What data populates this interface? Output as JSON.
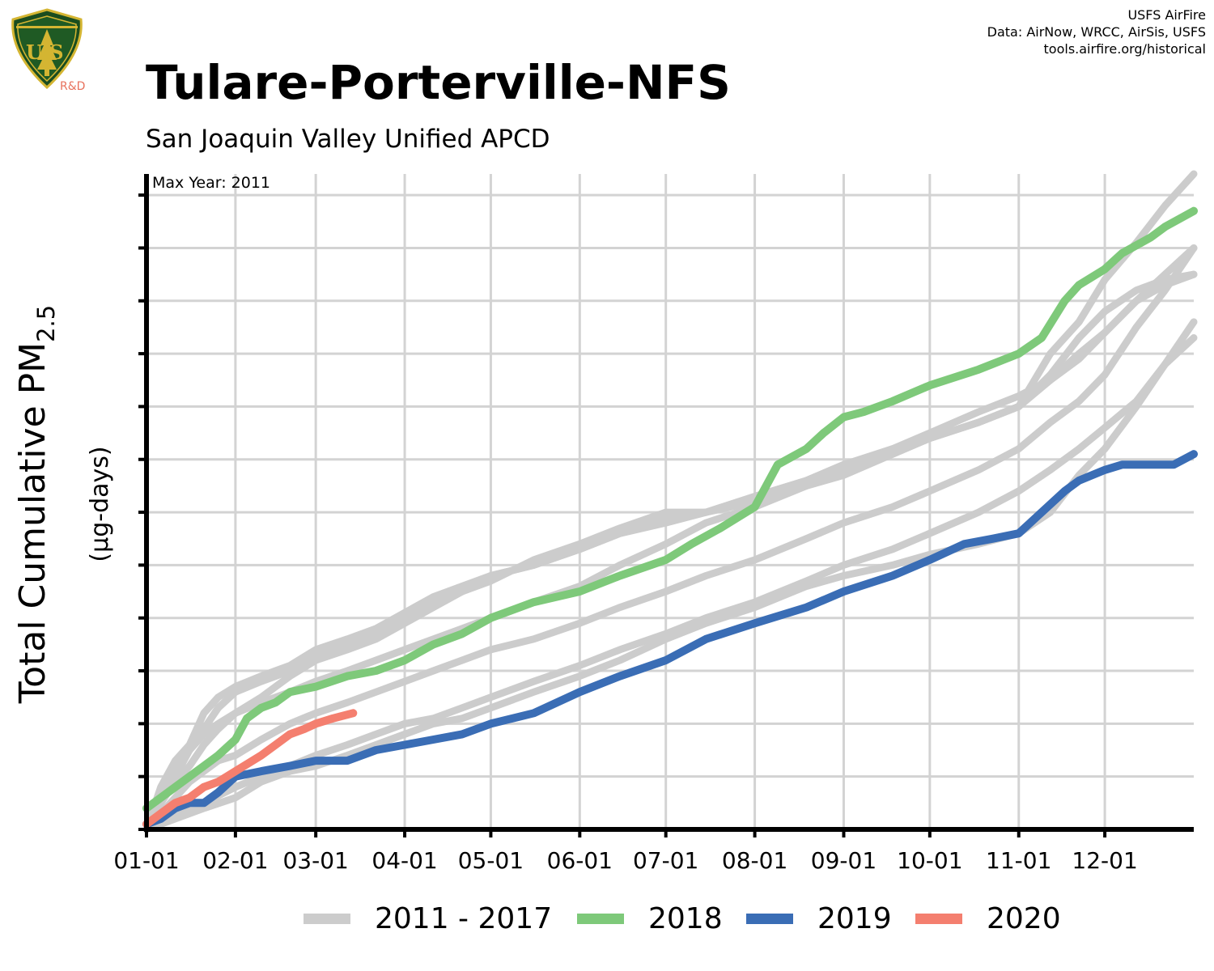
{
  "credits": [
    "USFS AirFire",
    "Data: AirNow, WRCC, AirSis, USFS",
    "tools.airfire.org/historical"
  ],
  "logo": {
    "text_top": "FOREST SERVICE",
    "text_main": "U S",
    "text_bottom": "DEPARTMENT OF AGRICULTURE",
    "text_rd": "R&D"
  },
  "header": {
    "title": "Tulare-Porterville-NFS",
    "subtitle": "San Joaquin Valley Unified APCD"
  },
  "colors": {
    "historical": "#cccccc",
    "y2018": "#7ec97a",
    "y2019": "#3a6db5",
    "y2020": "#f47f6f",
    "grid": "#d3d3d3",
    "axis": "#000000"
  },
  "chart_data": {
    "type": "line",
    "ylabel": "Total Cumulative PM",
    "ylabel_sub": "2.5",
    "ylabel_units": "(µg-days)",
    "annotation": "Max Year: 2011",
    "x_tick_labels": [
      "01-01",
      "02-01",
      "03-01",
      "04-01",
      "05-01",
      "06-01",
      "07-01",
      "08-01",
      "09-01",
      "10-01",
      "11-01",
      "12-01"
    ],
    "x_tick_days": [
      0,
      31,
      59,
      90,
      120,
      151,
      181,
      212,
      243,
      273,
      304,
      334
    ],
    "xlim": [
      0,
      365
    ],
    "ylim": [
      0,
      12.4
    ],
    "y_ticks": [
      0,
      1,
      2,
      3,
      4,
      5,
      6,
      7,
      8,
      9,
      10,
      11,
      12
    ],
    "y_tick_labels_shown": false,
    "grid": true,
    "legend_position": "bottom",
    "legend": [
      "2011 - 2017",
      "2018",
      "2019",
      "2020"
    ],
    "series": [
      {
        "group": "historical",
        "x": [
          0,
          5,
          10,
          15,
          20,
          25,
          31,
          40,
          45,
          50,
          59,
          70,
          80,
          90,
          100,
          110,
          120,
          135,
          151,
          165,
          181,
          195,
          212,
          230,
          243,
          260,
          273,
          290,
          304,
          315,
          325,
          334,
          345,
          355,
          365
        ],
        "y": [
          0.0,
          0.8,
          1.3,
          1.6,
          2.2,
          2.5,
          2.7,
          2.9,
          3.0,
          3.1,
          3.4,
          3.6,
          3.8,
          4.1,
          4.4,
          4.6,
          4.8,
          5.0,
          5.3,
          5.6,
          5.8,
          6.0,
          6.3,
          6.6,
          6.9,
          7.2,
          7.4,
          7.7,
          8.0,
          9.0,
          9.6,
          10.4,
          11.1,
          11.8,
          12.4
        ]
      },
      {
        "group": "historical",
        "x": [
          0,
          5,
          10,
          15,
          20,
          25,
          31,
          40,
          45,
          50,
          59,
          70,
          80,
          90,
          100,
          110,
          120,
          135,
          151,
          165,
          181,
          195,
          212,
          230,
          243,
          260,
          273,
          290,
          304,
          315,
          325,
          334,
          345,
          355,
          365
        ],
        "y": [
          0.1,
          0.6,
          1.0,
          1.5,
          1.9,
          2.3,
          2.6,
          2.8,
          2.9,
          3.0,
          3.3,
          3.5,
          3.7,
          4.0,
          4.3,
          4.5,
          4.7,
          5.1,
          5.4,
          5.7,
          6.0,
          6.0,
          6.3,
          6.6,
          6.9,
          7.1,
          7.4,
          7.7,
          8.0,
          8.6,
          9.3,
          9.8,
          10.2,
          10.4,
          10.5
        ]
      },
      {
        "group": "historical",
        "x": [
          0,
          10,
          20,
          31,
          40,
          50,
          59,
          70,
          80,
          90,
          100,
          110,
          120,
          135,
          151,
          165,
          181,
          195,
          212,
          230,
          243,
          260,
          273,
          290,
          304,
          315,
          325,
          334,
          345,
          355,
          365
        ],
        "y": [
          0.0,
          0.3,
          0.5,
          0.8,
          1.0,
          1.2,
          1.4,
          1.6,
          1.8,
          2.0,
          2.1,
          2.3,
          2.5,
          2.8,
          3.1,
          3.4,
          3.7,
          4.0,
          4.3,
          4.7,
          5.0,
          5.3,
          5.6,
          6.0,
          6.4,
          6.8,
          7.2,
          7.6,
          8.1,
          8.8,
          9.3
        ]
      },
      {
        "group": "historical",
        "x": [
          0,
          5,
          10,
          15,
          20,
          25,
          31,
          40,
          50,
          59,
          70,
          80,
          90,
          100,
          110,
          120,
          135,
          151,
          165,
          181,
          195,
          212,
          230,
          243,
          260,
          273,
          290,
          304,
          315,
          325,
          334,
          345,
          355,
          365
        ],
        "y": [
          0.0,
          0.7,
          1.2,
          1.5,
          1.8,
          2.0,
          2.2,
          2.4,
          2.6,
          2.8,
          3.0,
          3.2,
          3.4,
          3.6,
          3.8,
          4.0,
          4.3,
          4.6,
          5.0,
          5.4,
          5.8,
          6.1,
          6.5,
          6.7,
          7.1,
          7.4,
          7.7,
          8.0,
          8.5,
          9.0,
          9.4,
          10.0,
          10.3,
          10.5
        ]
      },
      {
        "group": "historical",
        "x": [
          0,
          10,
          20,
          31,
          40,
          50,
          59,
          70,
          80,
          90,
          100,
          110,
          120,
          135,
          151,
          165,
          181,
          195,
          212,
          230,
          243,
          260,
          273,
          290,
          304,
          315,
          325,
          334,
          345,
          355,
          365
        ],
        "y": [
          0.0,
          0.2,
          0.4,
          0.6,
          0.9,
          1.1,
          1.2,
          1.4,
          1.6,
          1.8,
          2.0,
          2.1,
          2.3,
          2.6,
          2.9,
          3.2,
          3.6,
          3.9,
          4.2,
          4.6,
          4.8,
          5.0,
          5.2,
          5.4,
          5.6,
          6.0,
          6.7,
          7.2,
          8.0,
          8.8,
          9.6
        ]
      },
      {
        "group": "historical",
        "x": [
          0,
          5,
          10,
          15,
          20,
          25,
          31,
          40,
          50,
          59,
          70,
          80,
          90,
          100,
          110,
          120,
          135,
          151,
          165,
          181,
          195,
          212,
          230,
          243,
          260,
          273,
          290,
          304,
          315,
          325,
          334,
          345,
          355,
          365
        ],
        "y": [
          0.0,
          0.3,
          0.6,
          0.9,
          1.1,
          1.3,
          1.4,
          1.7,
          2.0,
          2.2,
          2.4,
          2.6,
          2.8,
          3.0,
          3.2,
          3.4,
          3.6,
          3.9,
          4.2,
          4.5,
          4.8,
          5.1,
          5.5,
          5.8,
          6.1,
          6.4,
          6.8,
          7.2,
          7.7,
          8.1,
          8.6,
          9.5,
          10.2,
          11.0
        ]
      },
      {
        "group": "historical",
        "x": [
          0,
          5,
          10,
          15,
          20,
          25,
          31,
          40,
          45,
          50,
          59,
          70,
          80,
          90,
          100,
          110,
          120,
          135,
          151,
          165,
          181,
          195,
          212,
          230,
          243,
          260,
          273,
          290,
          304,
          315,
          325,
          334,
          345,
          355,
          365
        ],
        "y": [
          0.1,
          0.5,
          0.9,
          1.2,
          1.6,
          1.9,
          2.2,
          2.5,
          2.7,
          2.9,
          3.2,
          3.4,
          3.6,
          3.9,
          4.2,
          4.5,
          4.8,
          5.0,
          5.3,
          5.6,
          5.9,
          6.0,
          6.2,
          6.5,
          6.8,
          7.2,
          7.5,
          7.9,
          8.2,
          8.5,
          8.9,
          9.4,
          10.0,
          10.5,
          11.0
        ]
      },
      {
        "group": "y2018",
        "x": [
          0,
          5,
          10,
          15,
          20,
          25,
          31,
          35,
          40,
          45,
          50,
          59,
          70,
          80,
          90,
          100,
          110,
          120,
          135,
          151,
          165,
          181,
          190,
          200,
          212,
          220,
          230,
          236,
          243,
          250,
          260,
          273,
          290,
          304,
          312,
          320,
          325,
          334,
          340,
          350,
          355,
          365
        ],
        "y": [
          0.4,
          0.6,
          0.8,
          1.0,
          1.2,
          1.4,
          1.7,
          2.1,
          2.3,
          2.4,
          2.6,
          2.7,
          2.9,
          3.0,
          3.2,
          3.5,
          3.7,
          4.0,
          4.3,
          4.5,
          4.8,
          5.1,
          5.4,
          5.7,
          6.1,
          6.9,
          7.2,
          7.5,
          7.8,
          7.9,
          8.1,
          8.4,
          8.7,
          9.0,
          9.3,
          10.0,
          10.3,
          10.6,
          10.9,
          11.2,
          11.4,
          11.7
        ]
      },
      {
        "group": "y2019",
        "x": [
          0,
          5,
          10,
          15,
          20,
          25,
          31,
          40,
          50,
          59,
          70,
          80,
          90,
          100,
          110,
          120,
          135,
          151,
          165,
          181,
          195,
          212,
          230,
          243,
          260,
          273,
          285,
          295,
          304,
          312,
          320,
          325,
          334,
          340,
          350,
          358,
          365
        ],
        "y": [
          0.1,
          0.2,
          0.4,
          0.5,
          0.5,
          0.7,
          1.0,
          1.1,
          1.2,
          1.3,
          1.3,
          1.5,
          1.6,
          1.7,
          1.8,
          2.0,
          2.2,
          2.6,
          2.9,
          3.2,
          3.6,
          3.9,
          4.2,
          4.5,
          4.8,
          5.1,
          5.4,
          5.5,
          5.6,
          6.0,
          6.4,
          6.6,
          6.8,
          6.9,
          6.9,
          6.9,
          7.1
        ]
      },
      {
        "group": "y2020",
        "x": [
          0,
          5,
          10,
          15,
          20,
          25,
          31,
          40,
          45,
          50,
          55,
          59,
          65,
          72
        ],
        "y": [
          0.1,
          0.3,
          0.5,
          0.6,
          0.8,
          0.9,
          1.1,
          1.4,
          1.6,
          1.8,
          1.9,
          2.0,
          2.1,
          2.2
        ]
      }
    ]
  },
  "legend_items": [
    {
      "label": "2011 - 2017",
      "color_key": "historical"
    },
    {
      "label": "2018",
      "color_key": "y2018"
    },
    {
      "label": "2019",
      "color_key": "y2019"
    },
    {
      "label": "2020",
      "color_key": "y2020"
    }
  ]
}
